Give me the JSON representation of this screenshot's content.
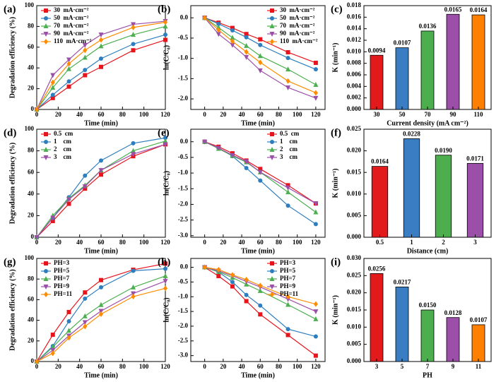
{
  "chart_data": [
    {
      "type": "line",
      "panel": "(a)",
      "xlabel": "Time (min)",
      "ylabel": "Degradation efficiency (%)",
      "legend": "upper left",
      "x": [
        0,
        15,
        30,
        45,
        60,
        90,
        120
      ],
      "xlim": [
        0,
        120
      ],
      "xticks": [
        0,
        20,
        40,
        60,
        80,
        100,
        120
      ],
      "ylim": [
        0,
        100
      ],
      "yticks": [
        0,
        20,
        40,
        60,
        80,
        100
      ],
      "series": [
        {
          "name": "30  mA·cm⁻²",
          "color": "#e8141c",
          "marker": "square",
          "values": [
            0,
            11,
            22,
            33,
            41,
            57,
            67
          ]
        },
        {
          "name": "50  mA·cm⁻²",
          "color": "#2e7ebf",
          "marker": "circle",
          "values": [
            0,
            14,
            27,
            38,
            49,
            63,
            72
          ]
        },
        {
          "name": "70  mA·cm⁻²",
          "color": "#4caf50",
          "marker": "triangle",
          "values": [
            0,
            21,
            39,
            50,
            61,
            72,
            80
          ]
        },
        {
          "name": "90  mA·cm⁻²",
          "color": "#9b4fa8",
          "marker": "triangle-down",
          "values": [
            0,
            33,
            48,
            62,
            72,
            82,
            85
          ]
        },
        {
          "name": "110  mA·cm⁻²",
          "color": "#ff8c00",
          "marker": "diamond",
          "values": [
            0,
            26,
            44,
            57,
            67,
            79,
            84
          ]
        }
      ]
    },
    {
      "type": "line",
      "panel": "(b)",
      "xlabel": "Time (min)",
      "ylabel": "ln(C/C₀)",
      "legend": "upper right",
      "x": [
        0,
        15,
        30,
        45,
        60,
        90,
        120
      ],
      "xlim": [
        -15,
        130
      ],
      "xticks": [
        0,
        20,
        40,
        60,
        80,
        100,
        120
      ],
      "ylim": [
        -2.26,
        0.3
      ],
      "yticks": [
        {
          "value": 0,
          "label": "0.0"
        },
        -0.5,
        {
          "value": -1,
          "label": "-1.0"
        },
        -1.5,
        {
          "value": -2,
          "label": "-2.0"
        }
      ],
      "series": [
        {
          "name": "30  mA·cm⁻²",
          "color": "#e8141c",
          "marker": "square",
          "values": [
            0,
            -0.12,
            -0.25,
            -0.4,
            -0.53,
            -0.85,
            -1.11
          ]
        },
        {
          "name": "50  mA·cm⁻²",
          "color": "#2e7ebf",
          "marker": "circle",
          "values": [
            0,
            -0.15,
            -0.31,
            -0.48,
            -0.67,
            -0.99,
            -1.27
          ]
        },
        {
          "name": "70  mA·cm⁻²",
          "color": "#4caf50",
          "marker": "triangle",
          "values": [
            0,
            -0.24,
            -0.49,
            -0.69,
            -0.94,
            -1.27,
            -1.65
          ]
        },
        {
          "name": "90  mA·cm⁻²",
          "color": "#9b4fa8",
          "marker": "triangle-down",
          "values": [
            0,
            -0.4,
            -0.67,
            -0.97,
            -1.3,
            -1.72,
            -1.98
          ]
        },
        {
          "name": "110  mA·cm⁻²",
          "color": "#ff8c00",
          "marker": "diamond",
          "values": [
            0,
            -0.3,
            -0.58,
            -0.84,
            -1.1,
            -1.56,
            -1.85
          ]
        }
      ]
    },
    {
      "type": "bar",
      "panel": "(c)",
      "xlabel": "Current density (mA cm⁻²)",
      "ylabel": "K (min⁻¹)",
      "categories": [
        "30",
        "50",
        "70",
        "90",
        "110"
      ],
      "values": [
        0.0094,
        0.0107,
        0.0136,
        0.0165,
        0.0164
      ],
      "colors": [
        "#e31a1c",
        "#3a7dc2",
        "#4cae4c",
        "#9b4fa8",
        "#ff8000"
      ],
      "ylim": [
        0,
        0.018
      ],
      "yticks": [
        {
          "value": 0,
          "label": "0.000"
        },
        0.002,
        0.004,
        0.006,
        0.008,
        {
          "value": 0.01,
          "label": "0.010"
        },
        0.012,
        0.014,
        0.016,
        0.018
      ]
    },
    {
      "type": "line",
      "panel": "(d)",
      "xlabel": "Time (min)",
      "ylabel": "Degradation efficiency (%)",
      "legend": "upper left",
      "x": [
        0,
        15,
        30,
        45,
        60,
        90,
        120
      ],
      "xlim": [
        0,
        120
      ],
      "xticks": [
        0,
        20,
        40,
        60,
        80,
        100,
        120
      ],
      "ylim": [
        0,
        100
      ],
      "yticks": [
        0,
        20,
        40,
        60,
        80,
        100
      ],
      "series": [
        {
          "name": "0.5  cm",
          "color": "#e8141c",
          "marker": "square",
          "values": [
            0,
            15,
            31,
            45,
            58,
            75,
            86
          ]
        },
        {
          "name": "1    cm",
          "color": "#2e7ebf",
          "marker": "circle",
          "values": [
            0,
            18,
            37,
            57,
            71,
            87,
            92
          ]
        },
        {
          "name": "2    cm",
          "color": "#4caf50",
          "marker": "triangle",
          "values": [
            0,
            20,
            36,
            48,
            62,
            80,
            89
          ]
        },
        {
          "name": "3    cm",
          "color": "#9b4fa8",
          "marker": "triangle-down",
          "values": [
            0,
            18,
            35,
            47,
            62,
            77,
            86
          ]
        }
      ]
    },
    {
      "type": "line",
      "panel": "(e)",
      "xlabel": "Time (min)",
      "ylabel": "ln(C/C₀)",
      "legend": "upper right",
      "x": [
        0,
        15,
        30,
        45,
        60,
        90,
        120
      ],
      "xlim": [
        -15,
        130
      ],
      "xticks": [
        0,
        20,
        40,
        60,
        80,
        100,
        120
      ],
      "ylim": [
        -3.05,
        0.4
      ],
      "yticks": [
        {
          "value": 0,
          "label": "0.0"
        },
        -0.5,
        {
          "value": -1,
          "label": "-1.0"
        },
        -1.5,
        {
          "value": -2,
          "label": "-2.0"
        },
        -2.5,
        {
          "value": -3,
          "label": "-3.0"
        }
      ],
      "series": [
        {
          "name": "0.5  cm",
          "color": "#e8141c",
          "marker": "square",
          "values": [
            0,
            -0.16,
            -0.37,
            -0.6,
            -0.87,
            -1.39,
            -1.97
          ]
        },
        {
          "name": "1    cm",
          "color": "#2e7ebf",
          "marker": "circle",
          "values": [
            0,
            -0.2,
            -0.46,
            -0.84,
            -1.24,
            -2.04,
            -2.63
          ]
        },
        {
          "name": "2    cm",
          "color": "#4caf50",
          "marker": "triangle",
          "values": [
            0,
            -0.22,
            -0.45,
            -0.65,
            -0.97,
            -1.61,
            -2.25
          ]
        },
        {
          "name": "3    cm",
          "color": "#9b4fa8",
          "marker": "triangle-down",
          "values": [
            0,
            -0.2,
            -0.43,
            -0.63,
            -0.97,
            -1.47,
            -1.97
          ]
        }
      ]
    },
    {
      "type": "bar",
      "panel": "(f)",
      "xlabel": "Distance (cm)",
      "ylabel": "K (min⁻¹)",
      "categories": [
        "0.5",
        "1",
        "2",
        "3"
      ],
      "values": [
        0.0164,
        0.0228,
        0.019,
        0.0171
      ],
      "value_labels": [
        "0.0164",
        "0.0228",
        "0.0190",
        "0.0171"
      ],
      "colors": [
        "#e31a1c",
        "#3a7dc2",
        "#4cae4c",
        "#9b4fa8"
      ],
      "ylim": [
        0,
        0.025
      ],
      "yticks": [
        {
          "value": 0,
          "label": "0.000"
        },
        0.005,
        {
          "value": 0.01,
          "label": "0.010"
        },
        0.015,
        {
          "value": 0.02,
          "label": "0.020"
        },
        0.025
      ]
    },
    {
      "type": "line",
      "panel": "(g)",
      "xlabel": "Time (min)",
      "ylabel": "Degradation efficiency (%)",
      "legend": "upper left",
      "x": [
        0,
        15,
        30,
        45,
        60,
        90,
        120
      ],
      "xlim": [
        0,
        120
      ],
      "xticks": [
        0,
        20,
        40,
        60,
        80,
        100,
        120
      ],
      "ylim": [
        0,
        100
      ],
      "yticks": [
        0,
        20,
        40,
        60,
        80,
        100
      ],
      "series": [
        {
          "name": "PH=3",
          "color": "#e8141c",
          "marker": "square",
          "values": [
            0,
            26,
            48,
            67,
            79,
            89,
            95
          ]
        },
        {
          "name": "PH=5",
          "color": "#2e7ebf",
          "marker": "circle",
          "values": [
            0,
            15,
            39,
            61,
            72,
            88,
            90
          ]
        },
        {
          "name": "PH=7",
          "color": "#4caf50",
          "marker": "triangle",
          "values": [
            0,
            14,
            30,
            44,
            55,
            72,
            83
          ]
        },
        {
          "name": "PH=9",
          "color": "#9b4fa8",
          "marker": "triangle-down",
          "values": [
            0,
            11,
            25,
            38,
            49,
            66,
            78
          ]
        },
        {
          "name": "PH=11",
          "color": "#ff8c00",
          "marker": "diamond",
          "values": [
            0,
            8,
            23,
            34,
            46,
            63,
            71
          ]
        }
      ]
    },
    {
      "type": "line",
      "panel": "(h)",
      "xlabel": "Time (min)",
      "ylabel": "ln(C/C₀)",
      "legend": "upper right",
      "x": [
        0,
        15,
        30,
        45,
        60,
        90,
        120
      ],
      "xlim": [
        -15,
        130
      ],
      "xticks": [
        0,
        20,
        40,
        60,
        80,
        100,
        120
      ],
      "ylim": [
        -3.2,
        0.3
      ],
      "yticks": [
        {
          "value": 0,
          "label": "0.0"
        },
        -0.5,
        {
          "value": -1,
          "label": "-1.0"
        },
        -1.5,
        {
          "value": -2,
          "label": "-2.0"
        },
        -2.5,
        {
          "value": -3,
          "label": "-3.0"
        }
      ],
      "series": [
        {
          "name": "PH=3",
          "color": "#e8141c",
          "marker": "square",
          "values": [
            0,
            -0.3,
            -0.65,
            -1.15,
            -1.6,
            -2.3,
            -3.0
          ]
        },
        {
          "name": "PH=5",
          "color": "#2e7ebf",
          "marker": "circle",
          "values": [
            0,
            -0.16,
            -0.5,
            -0.94,
            -1.3,
            -2.1,
            -2.35
          ]
        },
        {
          "name": "PH=7",
          "color": "#4caf50",
          "marker": "triangle",
          "values": [
            0,
            -0.15,
            -0.35,
            -0.58,
            -0.8,
            -1.27,
            -1.76
          ]
        },
        {
          "name": "PH=9",
          "color": "#9b4fa8",
          "marker": "triangle-down",
          "values": [
            0,
            -0.12,
            -0.29,
            -0.48,
            -0.67,
            -1.08,
            -1.5
          ]
        },
        {
          "name": "PH=11",
          "color": "#ff8c00",
          "marker": "diamond",
          "values": [
            0,
            -0.08,
            -0.26,
            -0.42,
            -0.62,
            -1.0,
            -1.25
          ]
        }
      ]
    },
    {
      "type": "bar",
      "panel": "(i)",
      "xlabel": "PH",
      "ylabel": "K (min⁻¹)",
      "categories": [
        "3",
        "5",
        "7",
        "9",
        "11"
      ],
      "values": [
        0.0256,
        0.0217,
        0.015,
        0.0128,
        0.0107
      ],
      "value_labels": [
        "0.0256",
        "0.0217",
        "0.0150",
        "0.0128",
        "0.0107"
      ],
      "colors": [
        "#e31a1c",
        "#3a7dc2",
        "#4cae4c",
        "#9b4fa8",
        "#ff8000"
      ],
      "ylim": [
        0,
        0.03
      ],
      "yticks": [
        {
          "value": 0,
          "label": "0.000"
        },
        0.005,
        {
          "value": 0.01,
          "label": "0.010"
        },
        0.015,
        {
          "value": 0.02,
          "label": "0.020"
        },
        0.025,
        {
          "value": 0.03,
          "label": "0.030"
        }
      ]
    }
  ]
}
